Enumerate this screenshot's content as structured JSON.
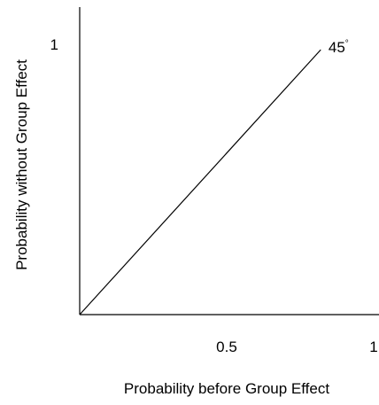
{
  "chart_data": {
    "type": "line",
    "title": "",
    "xlabel": "Probability before Group Effect",
    "ylabel": "Probability without Group Effect",
    "xlim": [
      0,
      1
    ],
    "ylim": [
      0,
      1
    ],
    "x_ticks": [
      {
        "value": 0.5,
        "label": "0.5"
      },
      {
        "value": 1,
        "label": "1"
      }
    ],
    "y_ticks": [
      {
        "value": 1,
        "label": "1"
      }
    ],
    "grid": false,
    "legend": "none",
    "series": [
      {
        "x": [
          0,
          0.82
        ],
        "y": [
          0,
          0.98
        ],
        "color": "#000000"
      }
    ],
    "annotations": [
      {
        "text": "45",
        "superscript": "°",
        "x": 0.84,
        "y": 0.98
      }
    ]
  }
}
